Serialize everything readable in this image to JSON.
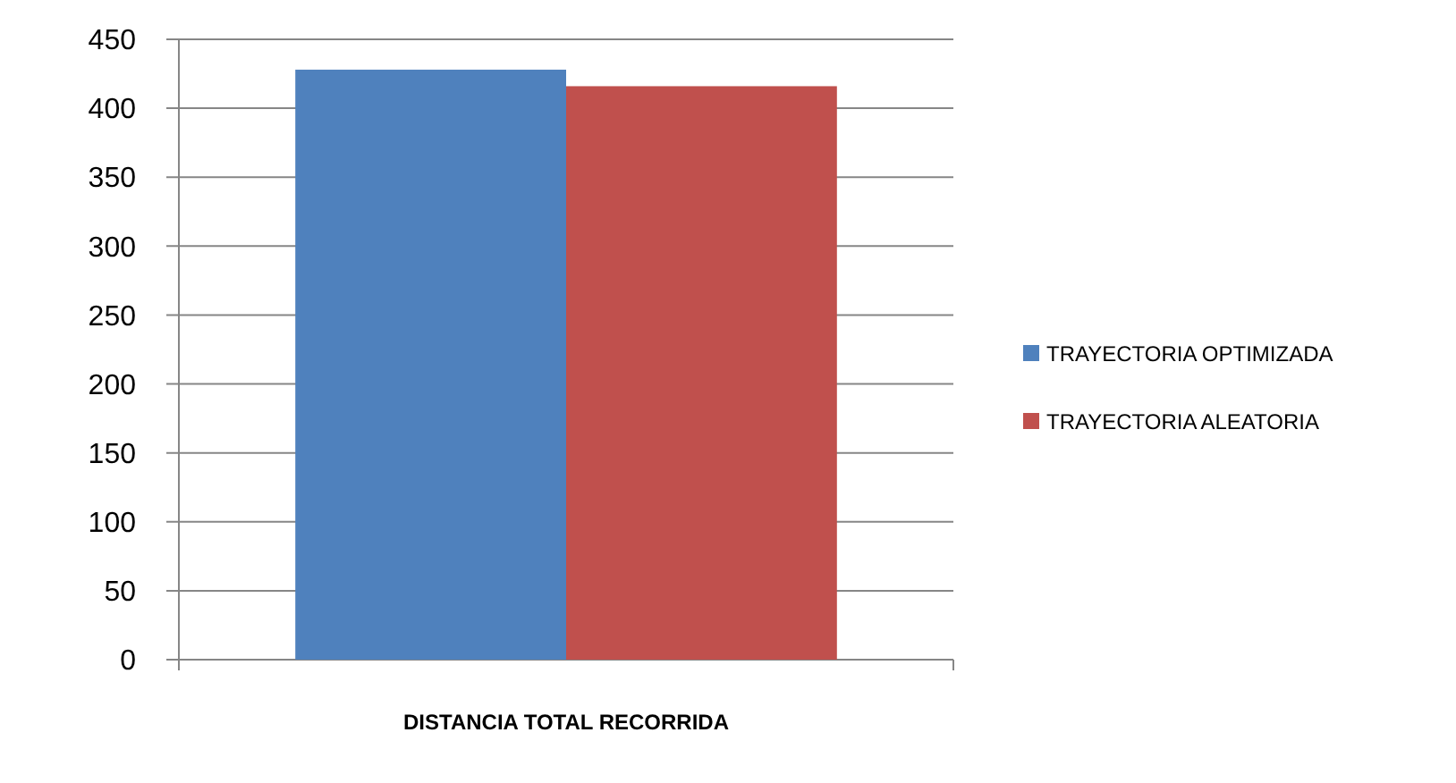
{
  "chart_data": {
    "type": "bar",
    "categories": [
      "DISTANCIA TOTAL RECORRIDA"
    ],
    "series": [
      {
        "name": "TRAYECTORIA OPTIMIZADA",
        "color": "#4f81bd",
        "values": [
          428
        ]
      },
      {
        "name": "TRAYECTORIA ALEATORIA",
        "color": "#c0504d",
        "values": [
          416
        ]
      }
    ],
    "ylim": [
      0,
      450
    ],
    "yticks": [
      0,
      50,
      100,
      150,
      200,
      250,
      300,
      350,
      400,
      450
    ],
    "grid": "y",
    "legend": "right"
  }
}
